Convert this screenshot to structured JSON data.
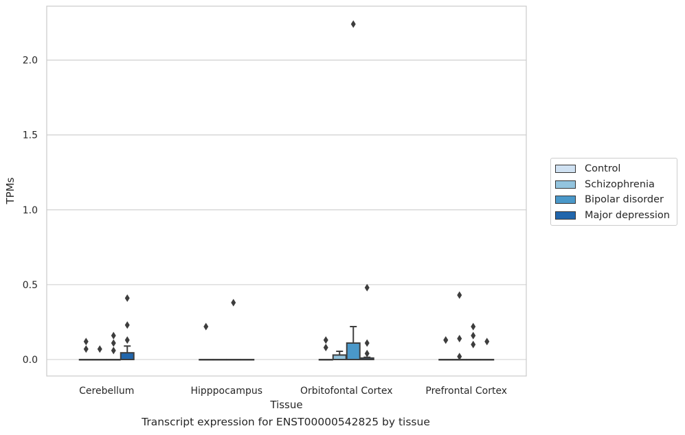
{
  "chart_data": {
    "type": "box",
    "xlabel": "Tissue",
    "ylabel": "TPMs",
    "caption": "Transcript expression for ENST00000542825 by tissue",
    "ylim": [
      -0.11,
      2.36
    ],
    "yticks": [
      "0.0",
      "0.5",
      "1.0",
      "1.5",
      "2.0"
    ],
    "grid": true,
    "legend_position": "right",
    "categories": [
      "Cerebellum",
      "Hipppocampus",
      "Orbitofontal Cortex",
      "Prefrontal Cortex"
    ],
    "series": [
      {
        "name": "Control",
        "color": "#cfe1f2",
        "boxes": [
          {
            "q1": 0,
            "median": 0,
            "q3": 0,
            "whisker_low": 0,
            "whisker_high": 0,
            "outliers": [
              0.07,
              0.12
            ]
          },
          {
            "q1": 0,
            "median": 0,
            "q3": 0,
            "whisker_low": 0,
            "whisker_high": 0,
            "outliers": [
              0.22
            ]
          },
          {
            "q1": 0,
            "median": 0,
            "q3": 0,
            "whisker_low": 0,
            "whisker_high": 0,
            "outliers": [
              0.08,
              0.13
            ]
          },
          {
            "q1": 0,
            "median": 0,
            "q3": 0,
            "whisker_low": 0,
            "whisker_high": 0,
            "outliers": [
              0.13,
              0.13
            ]
          }
        ]
      },
      {
        "name": "Schizophrenia",
        "color": "#93c4de",
        "boxes": [
          {
            "q1": 0,
            "median": 0,
            "q3": 0,
            "whisker_low": 0,
            "whisker_high": 0,
            "outliers": [
              0.07
            ]
          },
          {
            "q1": 0,
            "median": 0,
            "q3": 0,
            "whisker_low": 0,
            "whisker_high": 0,
            "outliers": []
          },
          {
            "q1": 0,
            "median": 0,
            "q3": 0.03,
            "whisker_low": 0,
            "whisker_high": 0.055,
            "outliers": []
          },
          {
            "q1": 0,
            "median": 0,
            "q3": 0,
            "whisker_low": 0,
            "whisker_high": 0,
            "outliers": [
              0.02,
              0.14,
              0.43
            ]
          }
        ]
      },
      {
        "name": "Bipolar disorder",
        "color": "#4a98c9",
        "boxes": [
          {
            "q1": 0,
            "median": 0,
            "q3": 0,
            "whisker_low": 0,
            "whisker_high": 0,
            "outliers": [
              0.06,
              0.11,
              0.16
            ]
          },
          {
            "q1": 0,
            "median": 0,
            "q3": 0,
            "whisker_low": 0,
            "whisker_high": 0,
            "outliers": [
              0.38
            ]
          },
          {
            "q1": 0,
            "median": 0,
            "q3": 0.11,
            "whisker_low": 0,
            "whisker_high": 0.22,
            "outliers": [
              2.24
            ]
          },
          {
            "q1": 0,
            "median": 0,
            "q3": 0,
            "whisker_low": 0,
            "whisker_high": 0,
            "outliers": [
              0.1,
              0.16,
              0.22
            ]
          }
        ]
      },
      {
        "name": "Major depression",
        "color": "#2166ac",
        "boxes": [
          {
            "q1": 0,
            "median": 0,
            "q3": 0.045,
            "whisker_low": 0,
            "whisker_high": 0.09,
            "outliers": [
              0.13,
              0.23,
              0.41
            ]
          },
          {
            "q1": 0,
            "median": 0,
            "q3": 0,
            "whisker_low": 0,
            "whisker_high": 0,
            "outliers": []
          },
          {
            "q1": 0,
            "median": 0,
            "q3": 0.01,
            "whisker_low": 0,
            "whisker_high": 0.015,
            "outliers": [
              0.04,
              0.11,
              0.48
            ]
          },
          {
            "q1": 0,
            "median": 0,
            "q3": 0,
            "whisker_low": 0,
            "whisker_high": 0,
            "outliers": [
              0.12
            ]
          }
        ]
      }
    ]
  }
}
